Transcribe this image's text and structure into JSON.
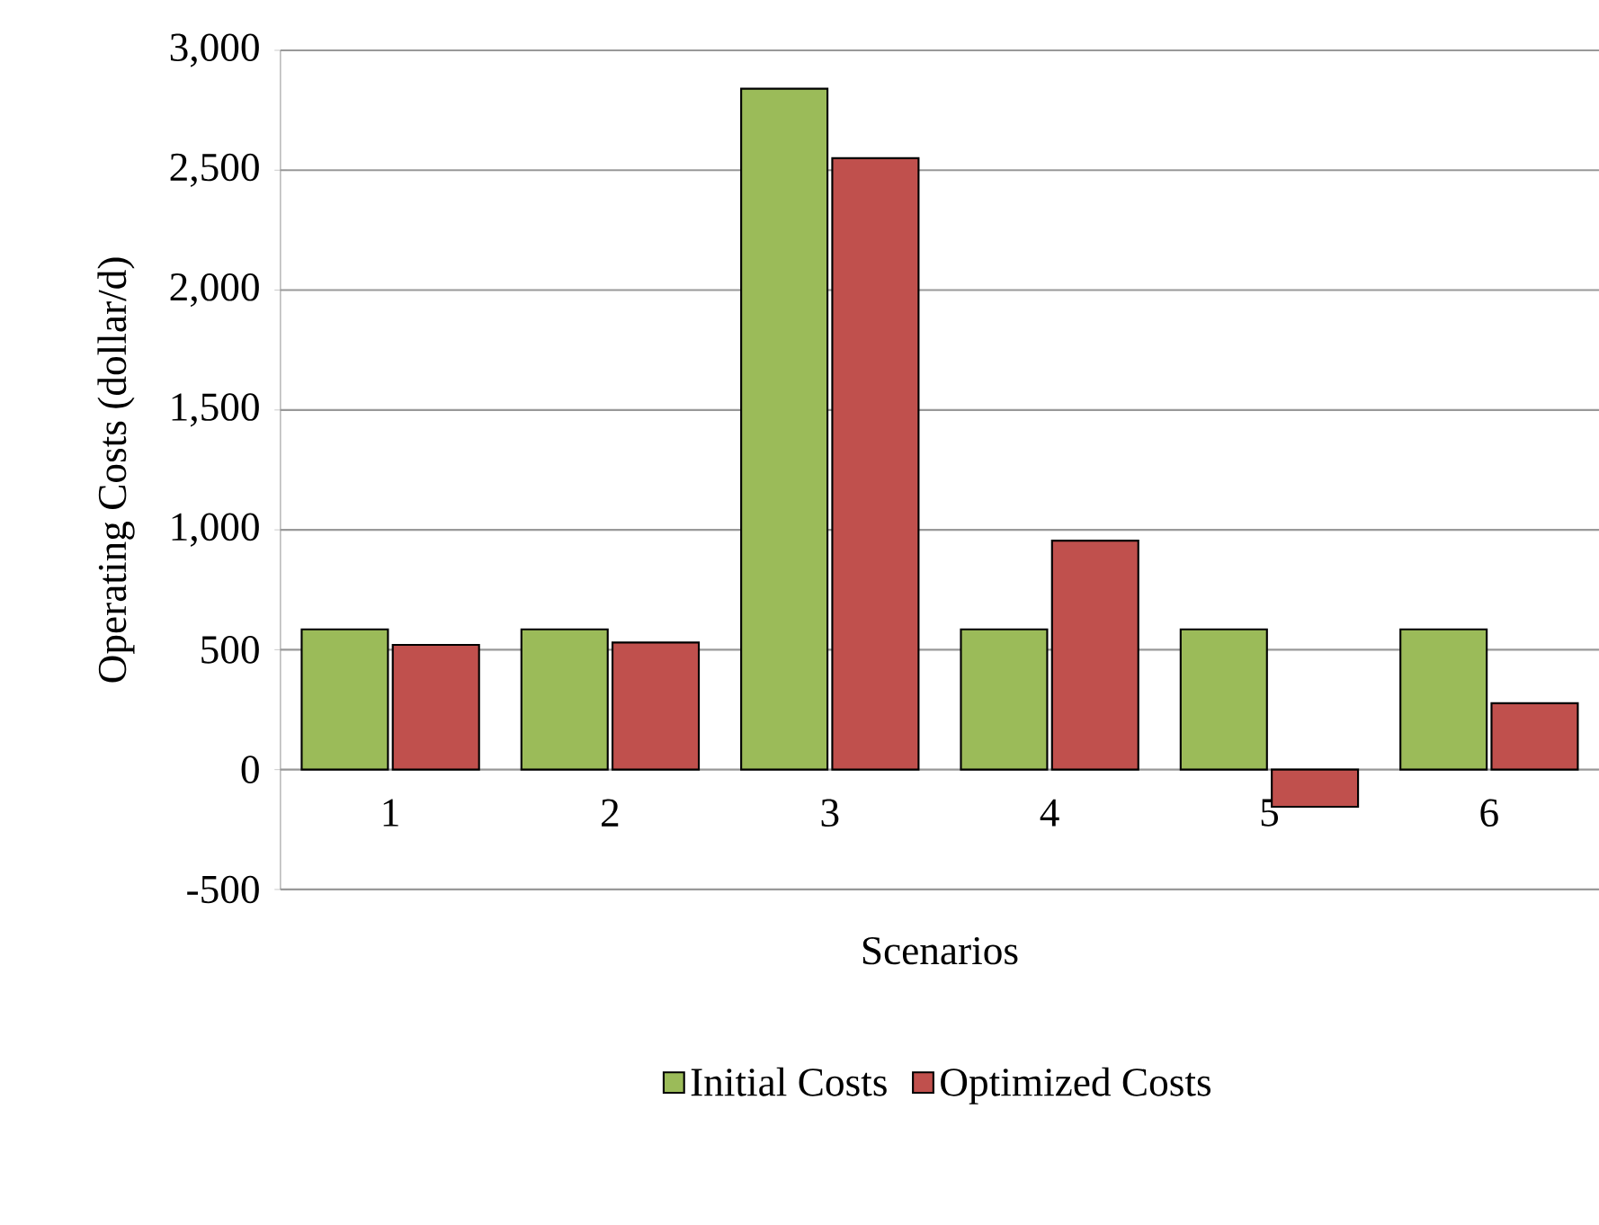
{
  "chart_data": {
    "type": "bar",
    "xlabel": "Scenarios",
    "ylabel": "Operating Costs (dollar/d)",
    "categories": [
      "1",
      "2",
      "3",
      "4",
      "5",
      "6"
    ],
    "series": [
      {
        "name": "Initial Costs",
        "color": "#9bbb59",
        "values": [
          585,
          585,
          2840,
          585,
          585,
          585
        ]
      },
      {
        "name": "Optimized Costs",
        "color": "#c0504d",
        "values": [
          520,
          530,
          2550,
          955,
          -155,
          277
        ]
      }
    ],
    "ylim": [
      -500,
      3000
    ],
    "yticks": [
      {
        "value": -500,
        "label": "-500"
      },
      0,
      500,
      {
        "value": 1000,
        "label": "1,000"
      },
      {
        "value": 1500,
        "label": "1,500"
      },
      {
        "value": 2000,
        "label": "2,000"
      },
      {
        "value": 2500,
        "label": "2,500"
      },
      {
        "value": 3000,
        "label": "3,000"
      }
    ],
    "grid": "y",
    "legend": "bottom"
  }
}
